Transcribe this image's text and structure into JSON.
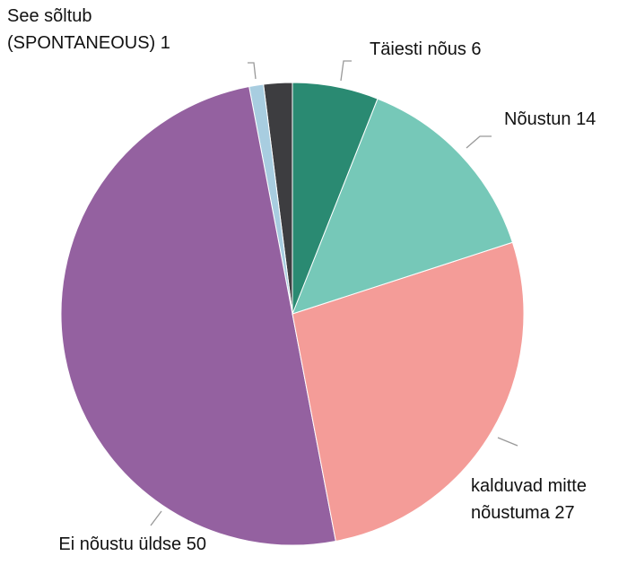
{
  "chart_data": {
    "type": "pie",
    "categories": [
      "Täiesti nõus",
      "Nõustun",
      "kalduvad mitte nõustuma",
      "Ei nõustu üldse",
      "See sõltub (SPONTANEOUS)",
      null
    ],
    "values": [
      6,
      14,
      27,
      50,
      1,
      2
    ],
    "colors": [
      "#2a8a72",
      "#76c8b8",
      "#f49c98",
      "#9461a0",
      "#a8cde0",
      "#3d3d40"
    ]
  }
}
